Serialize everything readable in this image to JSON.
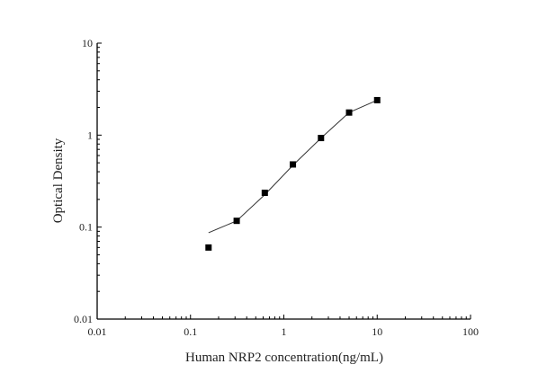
{
  "chart_data": {
    "type": "scatter",
    "title": "",
    "xlabel": "Human NRP2 concentration(ng/mL)",
    "ylabel": "Optical Density",
    "xscale": "log",
    "yscale": "log",
    "xlim": [
      0.01,
      100
    ],
    "ylim": [
      0.01,
      10
    ],
    "xticks": [
      "0.01",
      "0.1",
      "1",
      "10",
      "100"
    ],
    "yticks": [
      "0.01",
      "0.1",
      "1",
      "10"
    ],
    "grid": false,
    "legend": "none",
    "series": [
      {
        "marker": "square",
        "color": "#000000",
        "x": [
          0.156,
          0.3125,
          0.625,
          1.25,
          2.5,
          5,
          10
        ],
        "y": [
          0.06,
          0.117,
          0.236,
          0.48,
          0.93,
          1.76,
          2.4
        ]
      }
    ],
    "fit_curve": {
      "color": "#333333",
      "x": [
        0.156,
        0.3125,
        0.625,
        1.25,
        2.5,
        5,
        10
      ],
      "y": [
        0.087,
        0.117,
        0.225,
        0.47,
        0.93,
        1.76,
        2.4
      ]
    }
  }
}
